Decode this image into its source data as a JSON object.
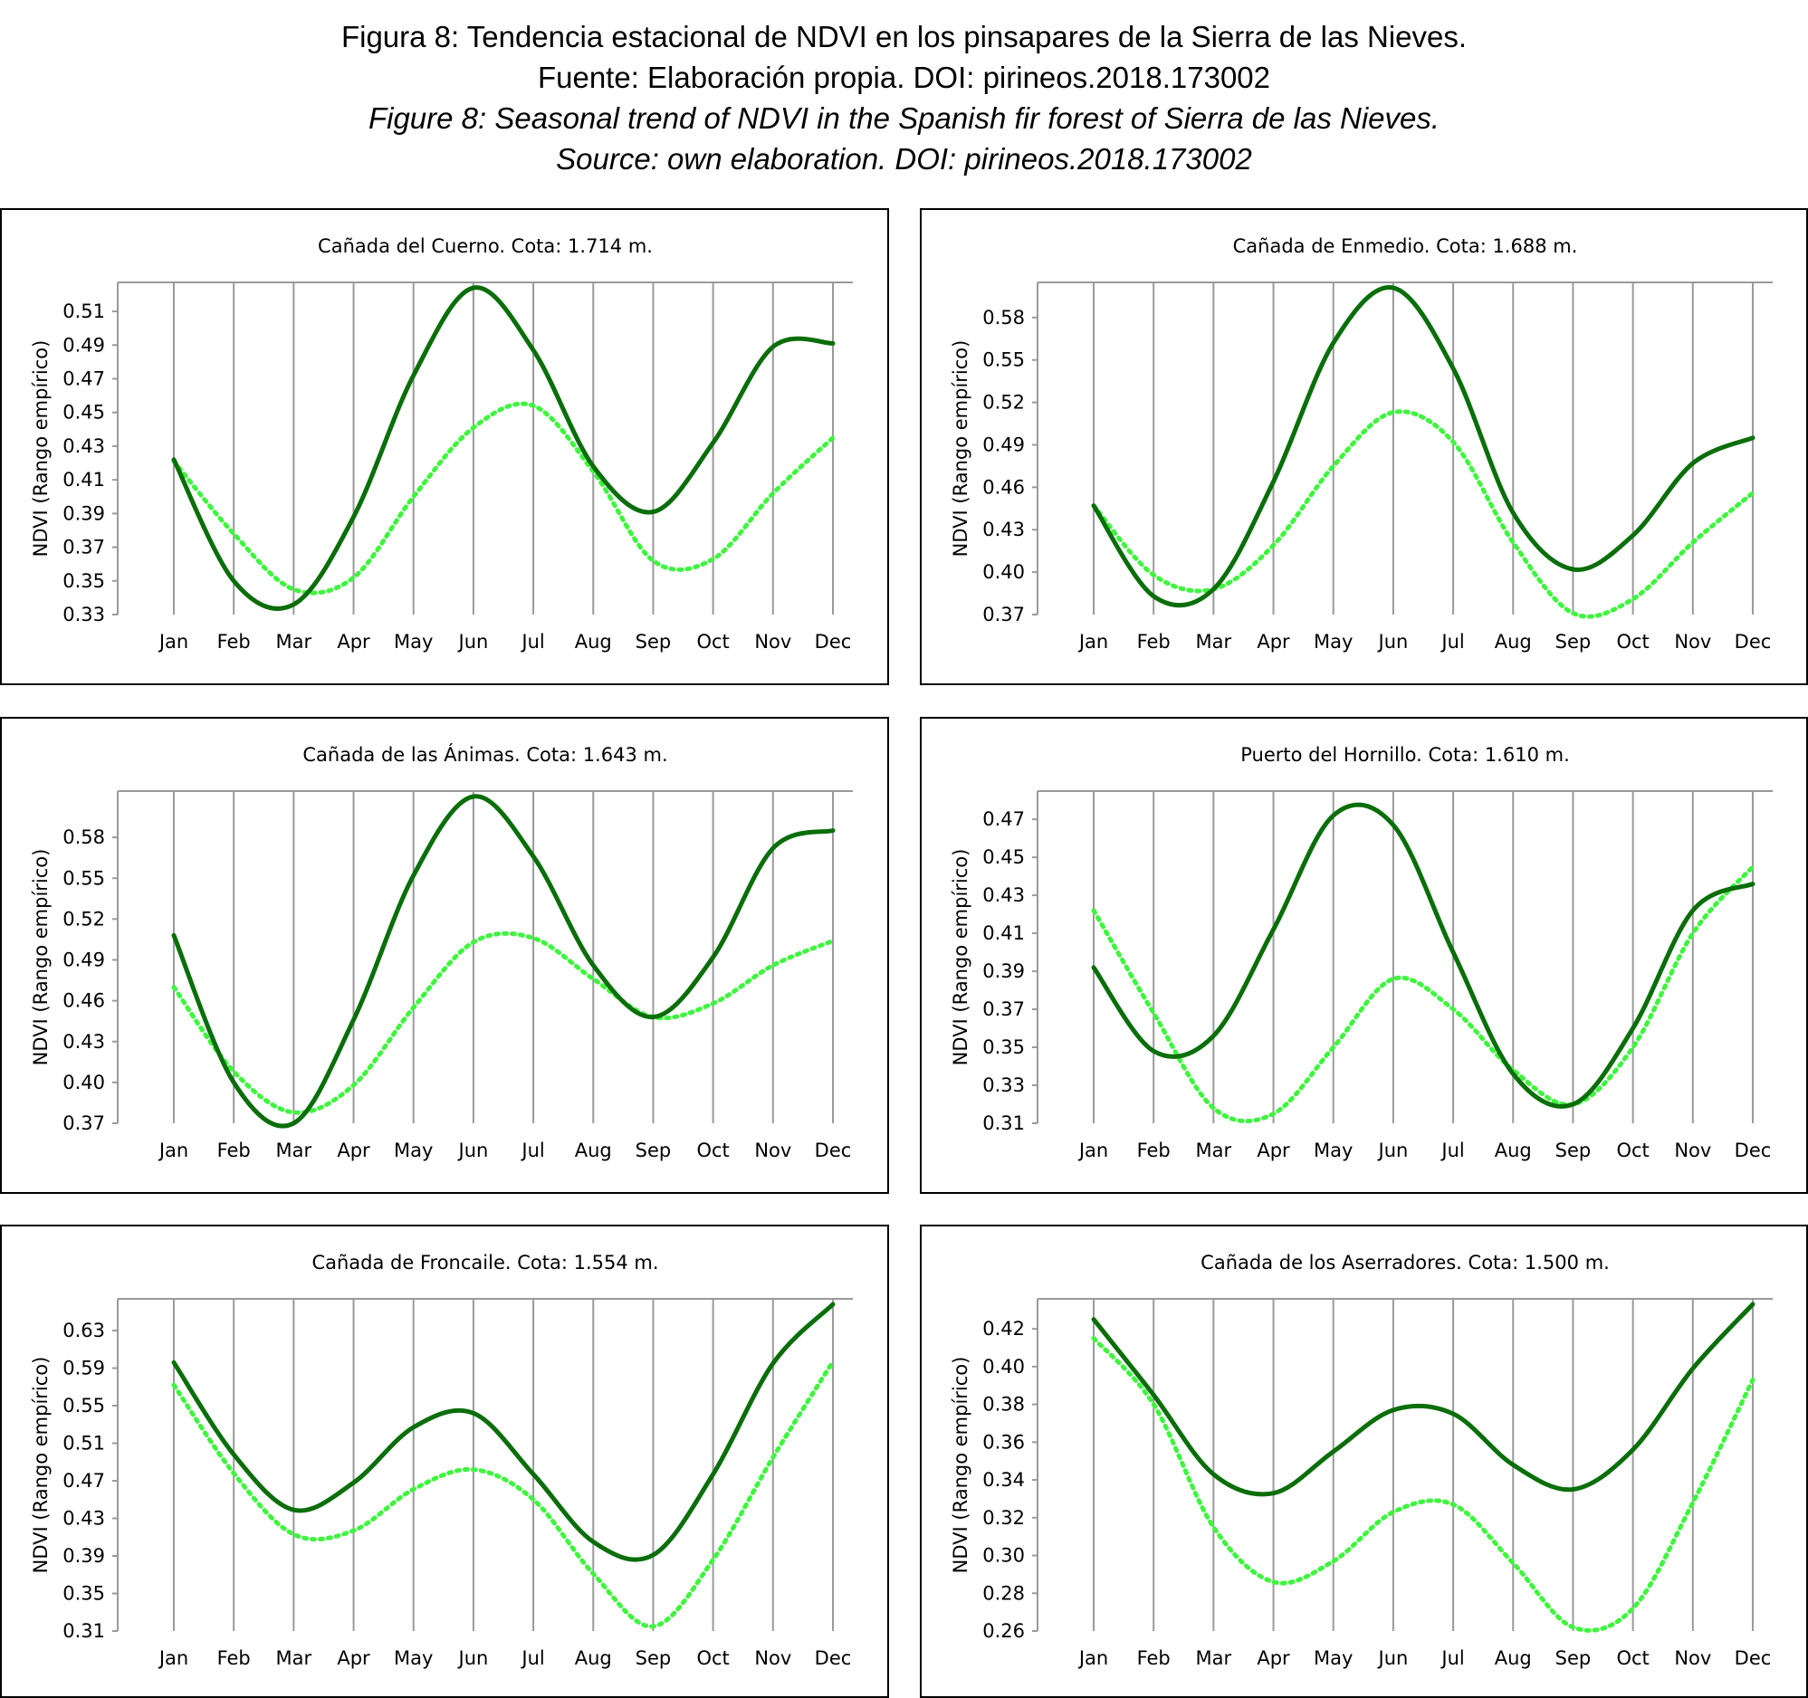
{
  "caption": {
    "es_line1": "Figura 8: Tendencia estacional de NDVI en los pinsapares de la Sierra de las Nieves.",
    "es_line2": "Fuente: Elaboración propia. DOI: pirineos.2018.173002",
    "en_line1": "Figure 8: Seasonal trend of NDVI in the Spanish fir forest of Sierra de las Nieves.",
    "en_line2": "Source: own elaboration. DOI: pirineos.2018.173002"
  },
  "colors": {
    "dark_series": "#0a6e0a",
    "light_series": "#3ef53e",
    "grid": "#9a9a9a"
  },
  "chart_data": [
    {
      "type": "line",
      "title": "Cañada del Cuerno. Cota: 1.714 m.",
      "ylabel": "NDVI (Rango empírico)",
      "categories": [
        "Jan",
        "Feb",
        "Mar",
        "Apr",
        "May",
        "Jun",
        "Jul",
        "Aug",
        "Sep",
        "Oct",
        "Nov",
        "Dec"
      ],
      "yticks": [
        0.33,
        0.35,
        0.37,
        0.39,
        0.41,
        0.43,
        0.45,
        0.47,
        0.49,
        0.51
      ],
      "ylim": [
        0.33,
        0.524
      ],
      "series": [
        {
          "style": "solid",
          "color": "#0a6e0a",
          "values": [
            0.422,
            0.35,
            0.336,
            0.388,
            0.472,
            0.524,
            0.487,
            0.418,
            0.391,
            0.432,
            0.489,
            0.491
          ]
        },
        {
          "style": "dotted",
          "color": "#3ef53e",
          "values": [
            0.421,
            0.378,
            0.345,
            0.352,
            0.4,
            0.441,
            0.454,
            0.415,
            0.362,
            0.363,
            0.402,
            0.435
          ]
        }
      ]
    },
    {
      "type": "line",
      "title": "Cañada de Enmedio. Cota: 1.688 m.",
      "ylabel": "NDVI (Rango empírico)",
      "categories": [
        "Jan",
        "Feb",
        "Mar",
        "Apr",
        "May",
        "Jun",
        "Jul",
        "Aug",
        "Sep",
        "Oct",
        "Nov",
        "Dec"
      ],
      "yticks": [
        0.37,
        0.4,
        0.43,
        0.46,
        0.49,
        0.52,
        0.55,
        0.58
      ],
      "ylim": [
        0.37,
        0.601
      ],
      "series": [
        {
          "style": "solid",
          "color": "#0a6e0a",
          "values": [
            0.447,
            0.383,
            0.388,
            0.464,
            0.562,
            0.601,
            0.544,
            0.442,
            0.402,
            0.426,
            0.477,
            0.495
          ]
        },
        {
          "style": "dotted",
          "color": "#3ef53e",
          "values": [
            0.447,
            0.398,
            0.388,
            0.419,
            0.475,
            0.513,
            0.492,
            0.421,
            0.371,
            0.381,
            0.421,
            0.456
          ]
        }
      ]
    },
    {
      "type": "line",
      "title": "Cañada de las Ánimas. Cota: 1.643 m.",
      "ylabel": "NDVI (Rango empírico)",
      "categories": [
        "Jan",
        "Feb",
        "Mar",
        "Apr",
        "May",
        "Jun",
        "Jul",
        "Aug",
        "Sep",
        "Oct",
        "Nov",
        "Dec"
      ],
      "yticks": [
        0.37,
        0.4,
        0.43,
        0.46,
        0.49,
        0.52,
        0.55,
        0.58
      ],
      "ylim": [
        0.37,
        0.61
      ],
      "series": [
        {
          "style": "solid",
          "color": "#0a6e0a",
          "values": [
            0.508,
            0.4,
            0.37,
            0.446,
            0.552,
            0.61,
            0.566,
            0.486,
            0.448,
            0.492,
            0.572,
            0.585
          ]
        },
        {
          "style": "dotted",
          "color": "#3ef53e",
          "values": [
            0.47,
            0.408,
            0.378,
            0.398,
            0.455,
            0.503,
            0.506,
            0.476,
            0.448,
            0.458,
            0.486,
            0.504
          ]
        }
      ]
    },
    {
      "type": "line",
      "title": "Puerto del Hornillo. Cota: 1.610 m.",
      "ylabel": "NDVI (Rango empírico)",
      "categories": [
        "Jan",
        "Feb",
        "Mar",
        "Apr",
        "May",
        "Jun",
        "Jul",
        "Aug",
        "Sep",
        "Oct",
        "Nov",
        "Dec"
      ],
      "yticks": [
        0.31,
        0.33,
        0.35,
        0.37,
        0.39,
        0.41,
        0.43,
        0.45,
        0.47
      ],
      "ylim": [
        0.31,
        0.482
      ],
      "series": [
        {
          "style": "solid",
          "color": "#0a6e0a",
          "values": [
            0.392,
            0.348,
            0.356,
            0.412,
            0.472,
            0.467,
            0.4,
            0.336,
            0.32,
            0.36,
            0.422,
            0.436
          ]
        },
        {
          "style": "dotted",
          "color": "#3ef53e",
          "values": [
            0.422,
            0.368,
            0.318,
            0.315,
            0.35,
            0.386,
            0.37,
            0.338,
            0.32,
            0.35,
            0.41,
            0.445
          ]
        }
      ]
    },
    {
      "type": "line",
      "title": "Cañada de Froncaile. Cota: 1.554 m.",
      "ylabel": "NDVI (Rango empírico)",
      "categories": [
        "Jan",
        "Feb",
        "Mar",
        "Apr",
        "May",
        "Jun",
        "Jul",
        "Aug",
        "Sep",
        "Oct",
        "Nov",
        "Dec"
      ],
      "yticks": [
        0.31,
        0.35,
        0.39,
        0.43,
        0.47,
        0.51,
        0.55,
        0.59,
        0.63
      ],
      "ylim": [
        0.31,
        0.658
      ],
      "series": [
        {
          "style": "solid",
          "color": "#0a6e0a",
          "values": [
            0.596,
            0.498,
            0.439,
            0.468,
            0.527,
            0.542,
            0.477,
            0.405,
            0.391,
            0.477,
            0.595,
            0.658
          ]
        },
        {
          "style": "dotted",
          "color": "#3ef53e",
          "values": [
            0.572,
            0.478,
            0.413,
            0.417,
            0.461,
            0.482,
            0.45,
            0.371,
            0.315,
            0.386,
            0.495,
            0.597
          ]
        }
      ]
    },
    {
      "type": "line",
      "title": "Cañada de los Aserradores. Cota: 1.500 m.",
      "ylabel": "NDVI (Rango empírico)",
      "categories": [
        "Jan",
        "Feb",
        "Mar",
        "Apr",
        "May",
        "Jun",
        "Jul",
        "Aug",
        "Sep",
        "Oct",
        "Nov",
        "Dec"
      ],
      "yticks": [
        0.26,
        0.28,
        0.3,
        0.32,
        0.34,
        0.36,
        0.38,
        0.4,
        0.42
      ],
      "ylim": [
        0.26,
        0.433
      ],
      "series": [
        {
          "style": "solid",
          "color": "#0a6e0a",
          "values": [
            0.425,
            0.385,
            0.343,
            0.333,
            0.355,
            0.377,
            0.375,
            0.348,
            0.335,
            0.356,
            0.399,
            0.433
          ]
        },
        {
          "style": "dotted",
          "color": "#3ef53e",
          "values": [
            0.415,
            0.38,
            0.315,
            0.286,
            0.297,
            0.323,
            0.327,
            0.296,
            0.262,
            0.272,
            0.328,
            0.393
          ]
        }
      ]
    }
  ]
}
